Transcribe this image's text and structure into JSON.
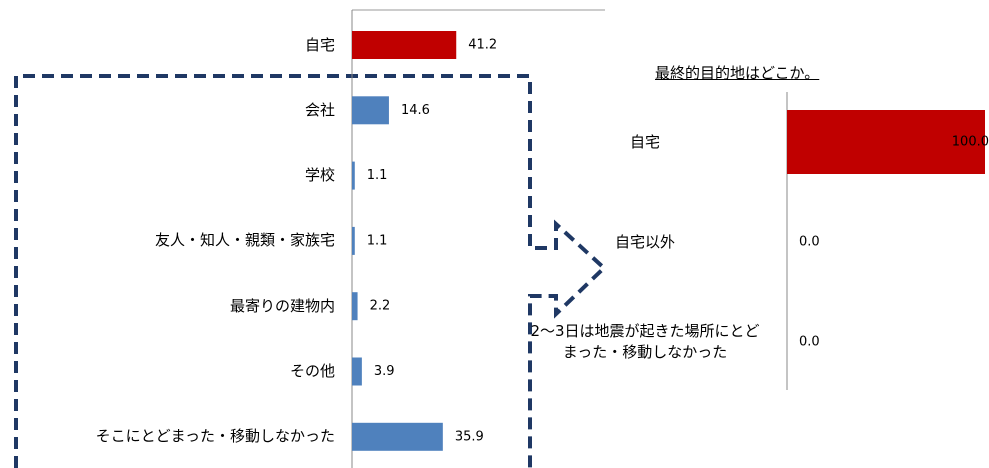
{
  "chart_data": [
    {
      "type": "bar",
      "categories": [
        "自宅",
        "会社",
        "学校",
        "友人・知人・親類・家族宅",
        "最寄りの建物内",
        "その他",
        "そこにとどまった・移動しなかった"
      ],
      "values": [
        41.2,
        14.6,
        1.1,
        1.1,
        2.2,
        3.9,
        35.9
      ],
      "colors": [
        "#c00000",
        "#4f81bd",
        "#4f81bd",
        "#4f81bd",
        "#4f81bd",
        "#4f81bd",
        "#4f81bd"
      ],
      "xlim": [
        0,
        100
      ]
    },
    {
      "type": "bar",
      "title": "最終的目的地はどこか。",
      "categories": [
        "自宅",
        "自宅以外",
        "2～3日は地震が起きた場所にとどまった・移動しなかった"
      ],
      "values": [
        100,
        0,
        0
      ],
      "value_labels": [
        "100.0",
        "0.0",
        "0.0"
      ],
      "colors": [
        "#c00000",
        "#c00000",
        "#c00000"
      ],
      "xlim": [
        0,
        100
      ]
    }
  ]
}
